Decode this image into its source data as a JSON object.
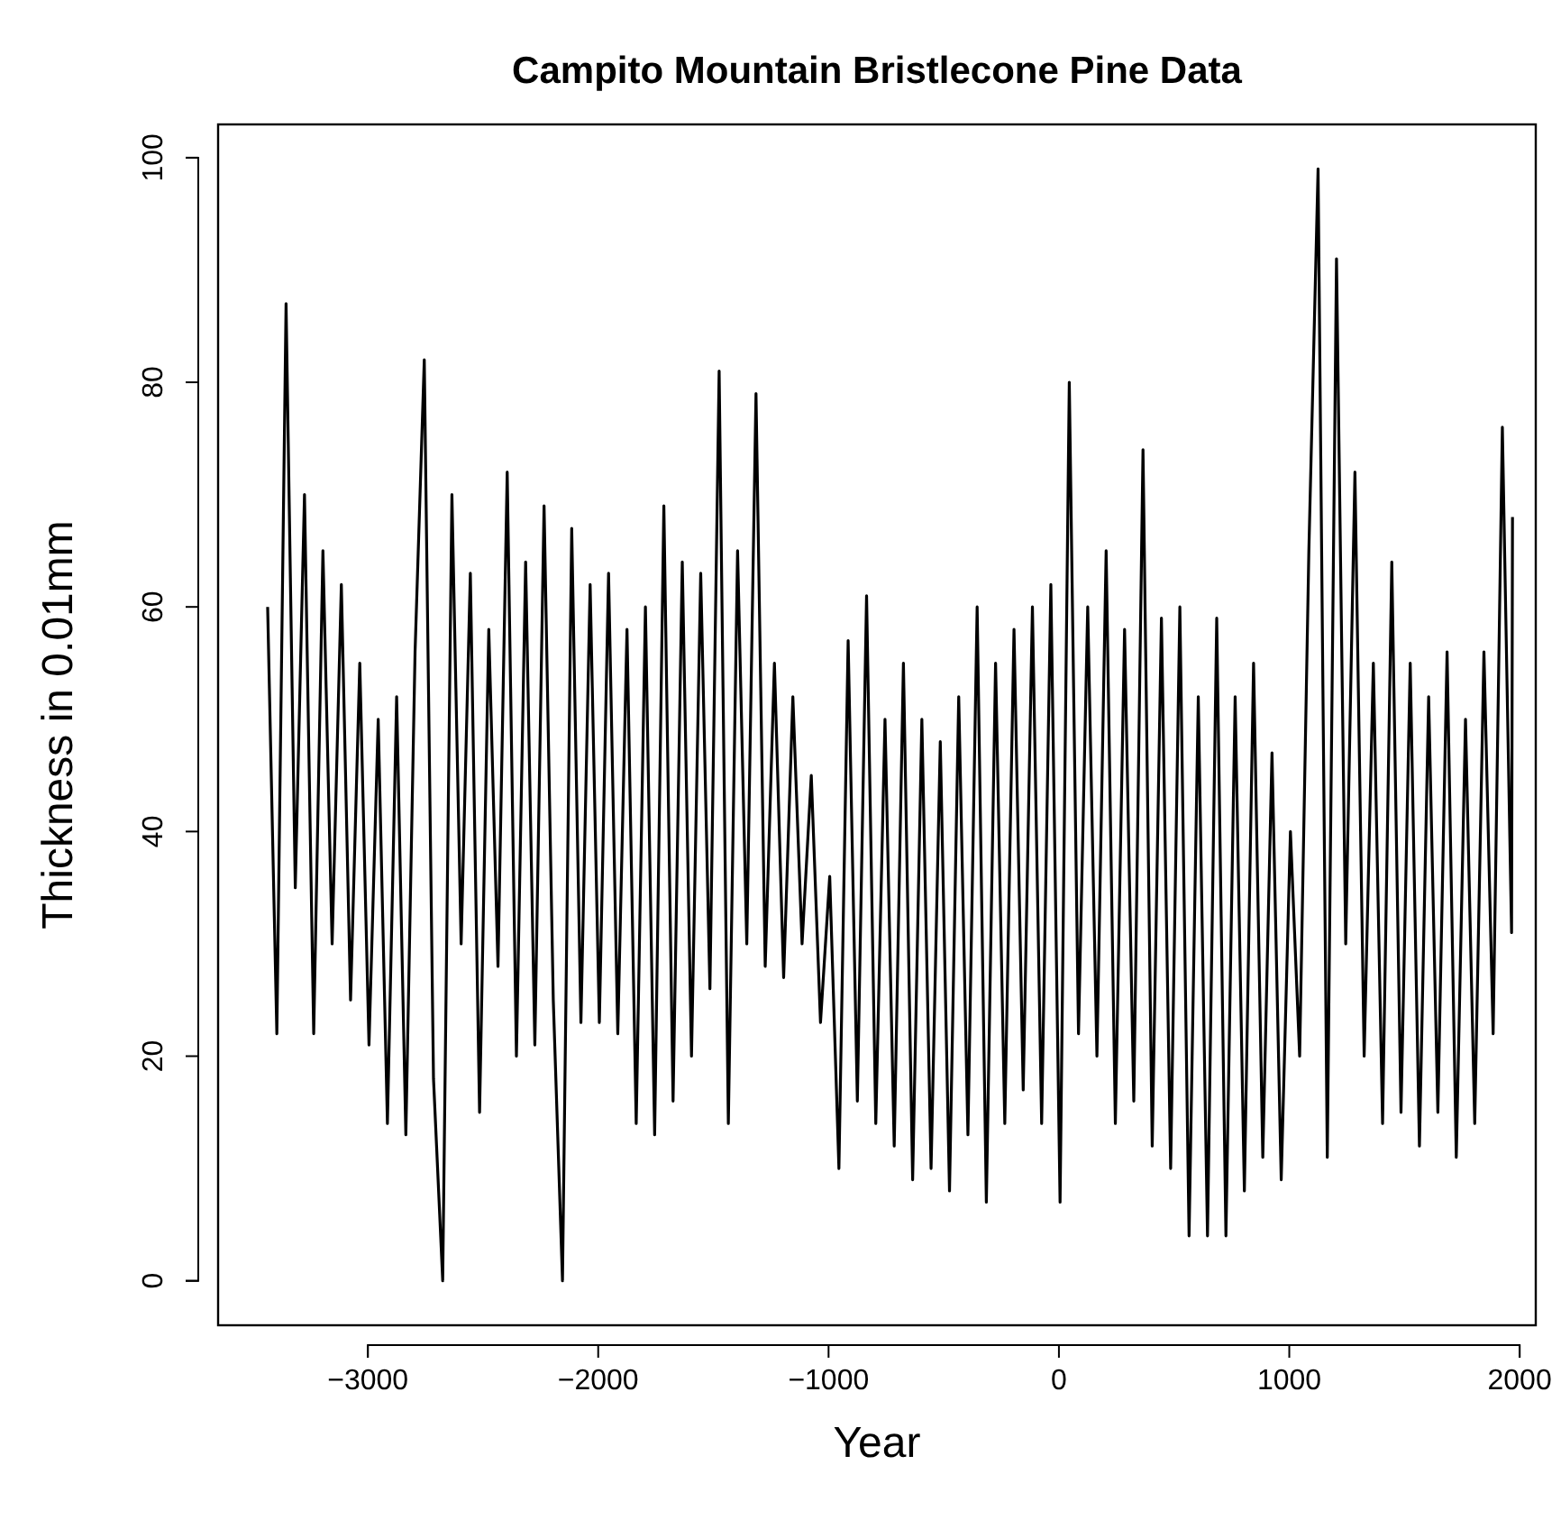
{
  "chart_data": {
    "type": "line",
    "title": "Campito Mountain Bristlecone Pine Data",
    "xlabel": "Year",
    "ylabel": "Thickness in 0.01mm",
    "x": [
      -3435,
      -3395,
      -3355,
      -3315,
      -3275,
      -3235,
      -3195,
      -3155,
      -3115,
      -3075,
      -3035,
      -2995,
      -2955,
      -2915,
      -2875,
      -2835,
      -2795,
      -2755,
      -2715,
      -2675,
      -2635,
      -2595,
      -2555,
      -2515,
      -2475,
      -2435,
      -2395,
      -2355,
      -2315,
      -2275,
      -2235,
      -2195,
      -2155,
      -2115,
      -2075,
      -2035,
      -1995,
      -1955,
      -1915,
      -1875,
      -1835,
      -1795,
      -1755,
      -1715,
      -1675,
      -1635,
      -1595,
      -1555,
      -1515,
      -1475,
      -1435,
      -1395,
      -1355,
      -1315,
      -1275,
      -1235,
      -1195,
      -1155,
      -1115,
      -1075,
      -1035,
      -995,
      -955,
      -915,
      -875,
      -835,
      -795,
      -755,
      -715,
      -675,
      -635,
      -595,
      -555,
      -515,
      -475,
      -435,
      -395,
      -355,
      -315,
      -275,
      -235,
      -195,
      -155,
      -115,
      -75,
      -35,
      5,
      45,
      85,
      125,
      165,
      205,
      245,
      285,
      325,
      365,
      405,
      445,
      485,
      525,
      565,
      605,
      645,
      685,
      725,
      765,
      805,
      845,
      885,
      925,
      965,
      1005,
      1045,
      1085,
      1125,
      1165,
      1205,
      1245,
      1285,
      1325,
      1365,
      1405,
      1445,
      1485,
      1525,
      1565,
      1605,
      1645,
      1685,
      1725,
      1765,
      1805,
      1845,
      1885,
      1925,
      1965,
      1969
    ],
    "series": [
      {
        "color": "#000000",
        "values": [
          60,
          22,
          87,
          35,
          70,
          22,
          65,
          30,
          62,
          25,
          55,
          21,
          50,
          14,
          52,
          13,
          56,
          82,
          18,
          0,
          70,
          30,
          63,
          15,
          58,
          28,
          72,
          20,
          64,
          21,
          69,
          25,
          0,
          67,
          23,
          62,
          23,
          63,
          22,
          58,
          14,
          60,
          13,
          69,
          16,
          64,
          20,
          63,
          26,
          81,
          14,
          65,
          30,
          79,
          28,
          55,
          27,
          52,
          30,
          45,
          23,
          36,
          10,
          57,
          16,
          61,
          14,
          50,
          12,
          55,
          9,
          50,
          10,
          48,
          8,
          52,
          13,
          60,
          7,
          55,
          14,
          58,
          17,
          60,
          14,
          62,
          7,
          80,
          22,
          60,
          20,
          65,
          14,
          58,
          16,
          74,
          12,
          59,
          10,
          60,
          4,
          52,
          4,
          59,
          4,
          52,
          8,
          55,
          11,
          47,
          9,
          40,
          20,
          65,
          99,
          11,
          91,
          30,
          72,
          20,
          55,
          14,
          64,
          15,
          55,
          12,
          52,
          15,
          56,
          11,
          50,
          14,
          56,
          22,
          76,
          31,
          68
        ]
      }
    ],
    "xlim": [
      -3650,
      2070
    ],
    "ylim": [
      -3.96,
      102.96
    ],
    "xticks": [
      -3000,
      -2000,
      -1000,
      0,
      1000,
      2000
    ],
    "yticks": [
      0,
      20,
      40,
      60,
      80,
      100
    ],
    "line_style": "solid",
    "marker": "none"
  }
}
